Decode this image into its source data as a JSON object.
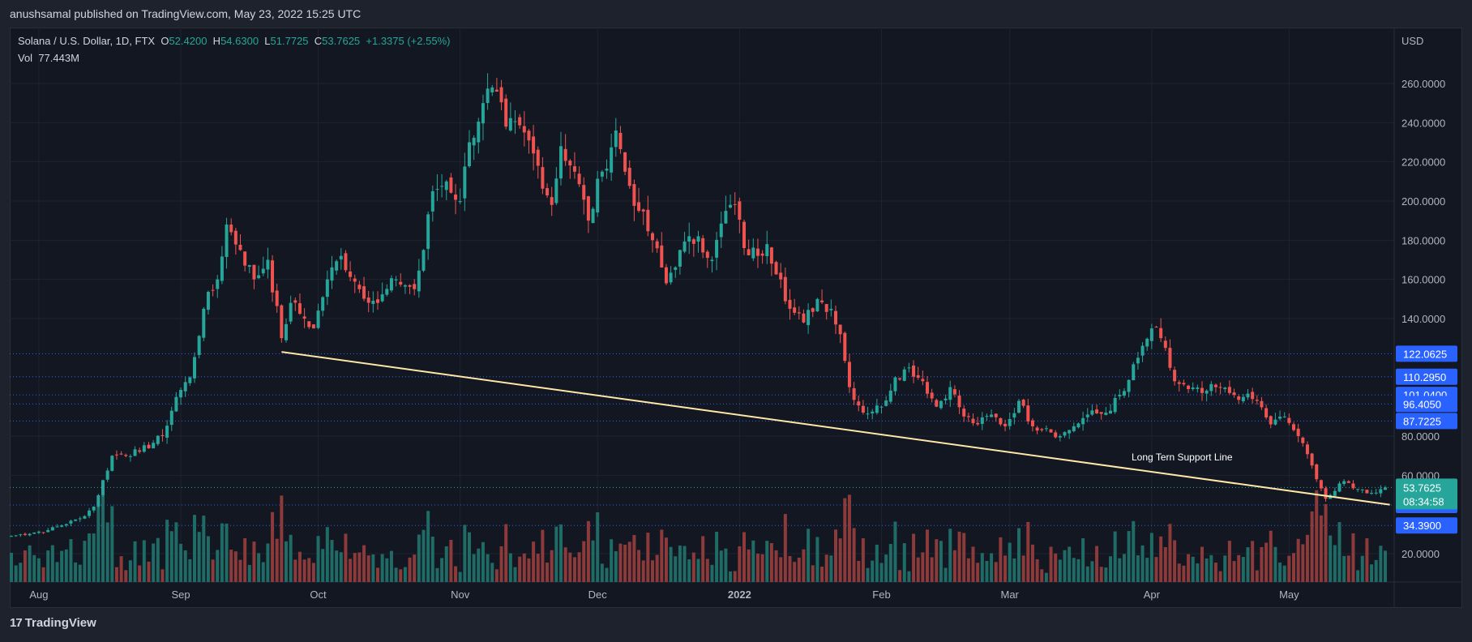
{
  "publisher_line": "anushsamal published on TradingView.com, May 23, 2022 15:25 UTC",
  "legend": {
    "symbol": "Solana / U.S. Dollar, 1D, FTX",
    "o_label": "O",
    "o": "52.4200",
    "h_label": "H",
    "h": "54.6300",
    "l_label": "L",
    "l": "51.7725",
    "c_label": "C",
    "c": "53.7625",
    "change": "+1.3375 (+2.55%)",
    "vol_label": "Vol",
    "vol": "77.443M"
  },
  "currency_label": "USD",
  "brand": "TradingView",
  "colors": {
    "up": "#26a69a",
    "down": "#ef5350",
    "vol_up": "#1f6b66",
    "vol_down": "#8c3a3a",
    "line": "#ffe7a8",
    "level": "#2962ff",
    "current": "#26a69a"
  },
  "chart_data": {
    "type": "candlestick",
    "title": "Solana / U.S. Dollar, 1D, FTX",
    "y_unit": "USD",
    "y_ticks": [
      "260.0000",
      "240.0000",
      "220.0000",
      "200.0000",
      "180.0000",
      "160.0000",
      "140.0000",
      "80.0000",
      "60.0000",
      "20.0000"
    ],
    "y_tick_values": [
      260,
      240,
      220,
      200,
      180,
      160,
      140,
      80,
      60,
      20
    ],
    "x_ticks": [
      {
        "label": "Aug",
        "day": 6
      },
      {
        "label": "Sep",
        "day": 37
      },
      {
        "label": "Oct",
        "day": 67
      },
      {
        "label": "Nov",
        "day": 98
      },
      {
        "label": "Dec",
        "day": 128
      },
      {
        "label": "2022",
        "day": 159
      },
      {
        "label": "Feb",
        "day": 190
      },
      {
        "label": "Mar",
        "day": 218
      },
      {
        "label": "Apr",
        "day": 249
      },
      {
        "label": "May",
        "day": 279
      }
    ],
    "price_levels": [
      {
        "label": "122.0625",
        "value": 122.0625
      },
      {
        "label": "110.2950",
        "value": 110.295
      },
      {
        "label": "101.0400",
        "value": 101.04
      },
      {
        "label": "96.4050",
        "value": 96.405
      },
      {
        "label": "87.7225",
        "value": 87.7225
      },
      {
        "label": "44.8500",
        "value": 44.85
      },
      {
        "label": "34.3900",
        "value": 34.39
      }
    ],
    "current_price": {
      "label": "53.7625",
      "value": 53.7625,
      "countdown": "08:34:58"
    },
    "support_line": {
      "label": "Long Tern Support Line",
      "from": {
        "day": 59,
        "price": 123
      },
      "to": {
        "day": 301,
        "price": 45
      }
    },
    "series_keypoints": [
      {
        "day": 0,
        "price": 29
      },
      {
        "day": 8,
        "price": 32
      },
      {
        "day": 15,
        "price": 38
      },
      {
        "day": 18,
        "price": 44
      },
      {
        "day": 22,
        "price": 70
      },
      {
        "day": 28,
        "price": 72
      },
      {
        "day": 33,
        "price": 80
      },
      {
        "day": 36,
        "price": 100
      },
      {
        "day": 39,
        "price": 110
      },
      {
        "day": 42,
        "price": 145
      },
      {
        "day": 45,
        "price": 160
      },
      {
        "day": 47,
        "price": 188
      },
      {
        "day": 50,
        "price": 175
      },
      {
        "day": 53,
        "price": 160
      },
      {
        "day": 56,
        "price": 170
      },
      {
        "day": 59,
        "price": 130
      },
      {
        "day": 61,
        "price": 148
      },
      {
        "day": 64,
        "price": 140
      },
      {
        "day": 66,
        "price": 135
      },
      {
        "day": 69,
        "price": 160
      },
      {
        "day": 72,
        "price": 172
      },
      {
        "day": 76,
        "price": 155
      },
      {
        "day": 80,
        "price": 148
      },
      {
        "day": 84,
        "price": 160
      },
      {
        "day": 88,
        "price": 155
      },
      {
        "day": 90,
        "price": 175
      },
      {
        "day": 92,
        "price": 205
      },
      {
        "day": 95,
        "price": 210
      },
      {
        "day": 98,
        "price": 200
      },
      {
        "day": 100,
        "price": 230
      },
      {
        "day": 103,
        "price": 250
      },
      {
        "day": 105,
        "price": 258
      },
      {
        "day": 108,
        "price": 238
      },
      {
        "day": 112,
        "price": 235
      },
      {
        "day": 115,
        "price": 218
      },
      {
        "day": 118,
        "price": 198
      },
      {
        "day": 120,
        "price": 228
      },
      {
        "day": 123,
        "price": 215
      },
      {
        "day": 126,
        "price": 190
      },
      {
        "day": 129,
        "price": 215
      },
      {
        "day": 132,
        "price": 236
      },
      {
        "day": 134,
        "price": 215
      },
      {
        "day": 137,
        "price": 195
      },
      {
        "day": 140,
        "price": 180
      },
      {
        "day": 143,
        "price": 158
      },
      {
        "day": 146,
        "price": 175
      },
      {
        "day": 150,
        "price": 182
      },
      {
        "day": 153,
        "price": 170
      },
      {
        "day": 156,
        "price": 195
      },
      {
        "day": 158,
        "price": 198
      },
      {
        "day": 160,
        "price": 176
      },
      {
        "day": 163,
        "price": 172
      },
      {
        "day": 165,
        "price": 178
      },
      {
        "day": 168,
        "price": 160
      },
      {
        "day": 170,
        "price": 145
      },
      {
        "day": 173,
        "price": 138
      },
      {
        "day": 176,
        "price": 150
      },
      {
        "day": 179,
        "price": 145
      },
      {
        "day": 181,
        "price": 132
      },
      {
        "day": 183,
        "price": 105
      },
      {
        "day": 186,
        "price": 92
      },
      {
        "day": 190,
        "price": 95
      },
      {
        "day": 193,
        "price": 110
      },
      {
        "day": 196,
        "price": 115
      },
      {
        "day": 199,
        "price": 108
      },
      {
        "day": 202,
        "price": 95
      },
      {
        "day": 205,
        "price": 105
      },
      {
        "day": 208,
        "price": 90
      },
      {
        "day": 211,
        "price": 86
      },
      {
        "day": 214,
        "price": 91
      },
      {
        "day": 217,
        "price": 85
      },
      {
        "day": 220,
        "price": 98
      },
      {
        "day": 223,
        "price": 85
      },
      {
        "day": 226,
        "price": 84
      },
      {
        "day": 229,
        "price": 80
      },
      {
        "day": 232,
        "price": 85
      },
      {
        "day": 235,
        "price": 91
      },
      {
        "day": 239,
        "price": 92
      },
      {
        "day": 243,
        "price": 103
      },
      {
        "day": 246,
        "price": 120
      },
      {
        "day": 249,
        "price": 135
      },
      {
        "day": 251,
        "price": 130
      },
      {
        "day": 254,
        "price": 108
      },
      {
        "day": 257,
        "price": 104
      },
      {
        "day": 260,
        "price": 102
      },
      {
        "day": 263,
        "price": 105
      },
      {
        "day": 266,
        "price": 102
      },
      {
        "day": 269,
        "price": 100
      },
      {
        "day": 272,
        "price": 98
      },
      {
        "day": 275,
        "price": 86
      },
      {
        "day": 278,
        "price": 90
      },
      {
        "day": 281,
        "price": 80
      },
      {
        "day": 284,
        "price": 65
      },
      {
        "day": 287,
        "price": 48
      },
      {
        "day": 289,
        "price": 52
      },
      {
        "day": 291,
        "price": 57
      },
      {
        "day": 294,
        "price": 53
      },
      {
        "day": 297,
        "price": 51
      },
      {
        "day": 300,
        "price": 53.76
      }
    ]
  }
}
